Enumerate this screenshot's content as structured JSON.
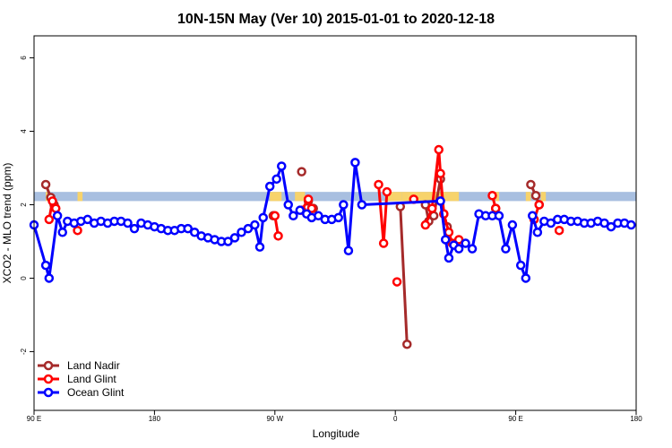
{
  "chart_data": {
    "type": "line",
    "title": "10N-15N May (Ver 10)   2015-01-01 to 2020-12-18",
    "xlabel": "Longitude",
    "ylabel": "XCO2 - MLO trend (ppm)",
    "xlim": [
      -90,
      270
    ],
    "ylim": [
      -3.6,
      6.6
    ],
    "x_ticks": [
      {
        "value": -90,
        "label": "90 E"
      },
      {
        "value": -18,
        "label": "180"
      },
      {
        "value": 54,
        "label": "90 W"
      },
      {
        "value": 126,
        "label": "0"
      },
      {
        "value": 198,
        "label": "90 E"
      },
      {
        "value": 270,
        "label": "180"
      }
    ],
    "y_ticks": [
      {
        "value": -2,
        "label": "-2"
      },
      {
        "value": 0,
        "label": "0"
      },
      {
        "value": 2,
        "label": "2"
      },
      {
        "value": 4,
        "label": "4"
      },
      {
        "value": 6,
        "label": "6"
      }
    ],
    "reference_band": {
      "y_min": 2.1,
      "y_max": 2.35,
      "color": "#a8bfe0"
    },
    "land_bands": [
      {
        "x_min": -83,
        "x_max": -82
      },
      {
        "x_min": -64,
        "x_max": -61
      },
      {
        "x_min": 51,
        "x_max": 58
      },
      {
        "x_min": 66,
        "x_max": 72
      },
      {
        "x_min": 120,
        "x_max": 130
      },
      {
        "x_min": 130,
        "x_max": 164
      },
      {
        "x_min": 186,
        "x_max": 188
      },
      {
        "x_min": 204,
        "x_max": 207
      },
      {
        "x_min": 213,
        "x_max": 216
      }
    ],
    "land_band_color": "#f7d36b",
    "legend": "bottom-left",
    "series": [
      {
        "name": "Land Nadir",
        "color": "#a52a2a",
        "segments": [
          [
            [
              -83,
              2.55
            ],
            [
              -80,
              2.2
            ],
            [
              -78,
              2.0
            ]
          ],
          [
            [
              53,
              1.7
            ]
          ],
          [
            [
              70,
              2.9
            ]
          ],
          [
            [
              74,
              2.1
            ]
          ],
          [
            [
              77,
              1.9
            ]
          ],
          [
            [
              129,
              1.95
            ],
            [
              133,
              -1.8
            ]
          ],
          [
            [
              144,
              2.0
            ],
            [
              146,
              1.55
            ]
          ],
          [
            [
              149,
              1.7
            ],
            [
              153,
              2.7
            ],
            [
              155,
              1.75
            ],
            [
              157,
              1.4
            ]
          ],
          [
            [
              186,
              1.9
            ]
          ],
          [
            [
              207,
              2.55
            ],
            [
              210,
              2.25
            ],
            [
              212,
              2.0
            ]
          ]
        ]
      },
      {
        "name": "Land Glint",
        "color": "#ff0000",
        "segments": [
          [
            [
              -81,
              1.6
            ],
            [
              -79,
              2.1
            ],
            [
              -77,
              1.9
            ]
          ],
          [
            [
              -64,
              1.3
            ]
          ],
          [
            [
              54,
              1.7
            ],
            [
              56,
              1.15
            ]
          ],
          [
            [
              70,
              1.85
            ],
            [
              74,
              2.15
            ],
            [
              76,
              1.9
            ]
          ],
          [
            [
              116,
              2.55
            ],
            [
              119,
              0.95
            ],
            [
              121,
              2.35
            ]
          ],
          [
            [
              127,
              -0.1
            ]
          ],
          [
            [
              137,
              2.15
            ]
          ],
          [
            [
              144,
              1.45
            ],
            [
              148,
              1.9
            ],
            [
              152,
              3.5
            ],
            [
              153,
              2.85
            ],
            [
              155,
              1.75
            ],
            [
              158,
              1.25
            ],
            [
              160,
              0.95
            ],
            [
              164,
              1.05
            ]
          ],
          [
            [
              184,
              2.25
            ],
            [
              186,
              1.9
            ]
          ],
          [
            [
              209,
              1.6
            ],
            [
              212,
              2.0
            ]
          ],
          [
            [
              224,
              1.3
            ]
          ]
        ]
      },
      {
        "name": "Ocean Glint",
        "color": "#0000ff",
        "points": [
          [
            -90,
            1.45
          ],
          [
            -83,
            0.35
          ],
          [
            -81,
            0
          ],
          [
            -76,
            1.7
          ],
          [
            -73,
            1.25
          ],
          [
            -70,
            1.55
          ],
          [
            -66,
            1.5
          ],
          [
            -62,
            1.55
          ],
          [
            -58,
            1.6
          ],
          [
            -54,
            1.5
          ],
          [
            -50,
            1.55
          ],
          [
            -46,
            1.5
          ],
          [
            -42,
            1.55
          ],
          [
            -38,
            1.55
          ],
          [
            -34,
            1.5
          ],
          [
            -30,
            1.35
          ],
          [
            -26,
            1.5
          ],
          [
            -22,
            1.45
          ],
          [
            -18,
            1.4
          ],
          [
            -14,
            1.35
          ],
          [
            -10,
            1.3
          ],
          [
            -6,
            1.3
          ],
          [
            -2,
            1.35
          ],
          [
            2,
            1.35
          ],
          [
            6,
            1.25
          ],
          [
            10,
            1.15
          ],
          [
            14,
            1.1
          ],
          [
            18,
            1.05
          ],
          [
            22,
            1.0
          ],
          [
            26,
            1.0
          ],
          [
            30,
            1.1
          ],
          [
            34,
            1.25
          ],
          [
            38,
            1.35
          ],
          [
            42,
            1.45
          ],
          [
            45,
            0.85
          ],
          [
            47,
            1.65
          ],
          [
            51,
            2.5
          ],
          [
            55,
            2.7
          ],
          [
            58,
            3.05
          ],
          [
            62,
            2.0
          ],
          [
            65,
            1.7
          ],
          [
            69,
            1.85
          ],
          [
            73,
            1.75
          ],
          [
            76,
            1.65
          ],
          [
            80,
            1.7
          ],
          [
            84,
            1.6
          ],
          [
            88,
            1.6
          ],
          [
            92,
            1.65
          ],
          [
            95,
            2.0
          ],
          [
            98,
            0.75
          ],
          [
            102,
            3.15
          ],
          [
            106,
            2.0
          ],
          [
            153,
            2.1
          ],
          [
            156,
            1.05
          ],
          [
            158,
            0.55
          ],
          [
            161,
            0.9
          ],
          [
            164,
            0.8
          ],
          [
            168,
            0.95
          ],
          [
            172,
            0.8
          ],
          [
            176,
            1.75
          ],
          [
            180,
            1.7
          ],
          [
            184,
            1.7
          ],
          [
            188,
            1.7
          ],
          [
            192,
            0.8
          ],
          [
            196,
            1.45
          ],
          [
            201,
            0.35
          ],
          [
            204,
            0
          ],
          [
            208,
            1.7
          ],
          [
            211,
            1.25
          ],
          [
            215,
            1.55
          ],
          [
            219,
            1.5
          ],
          [
            223,
            1.6
          ],
          [
            227,
            1.6
          ],
          [
            231,
            1.55
          ],
          [
            235,
            1.55
          ],
          [
            239,
            1.5
          ],
          [
            243,
            1.5
          ],
          [
            247,
            1.55
          ],
          [
            251,
            1.5
          ],
          [
            255,
            1.4
          ],
          [
            259,
            1.5
          ],
          [
            263,
            1.5
          ],
          [
            267,
            1.45
          ]
        ]
      }
    ]
  }
}
